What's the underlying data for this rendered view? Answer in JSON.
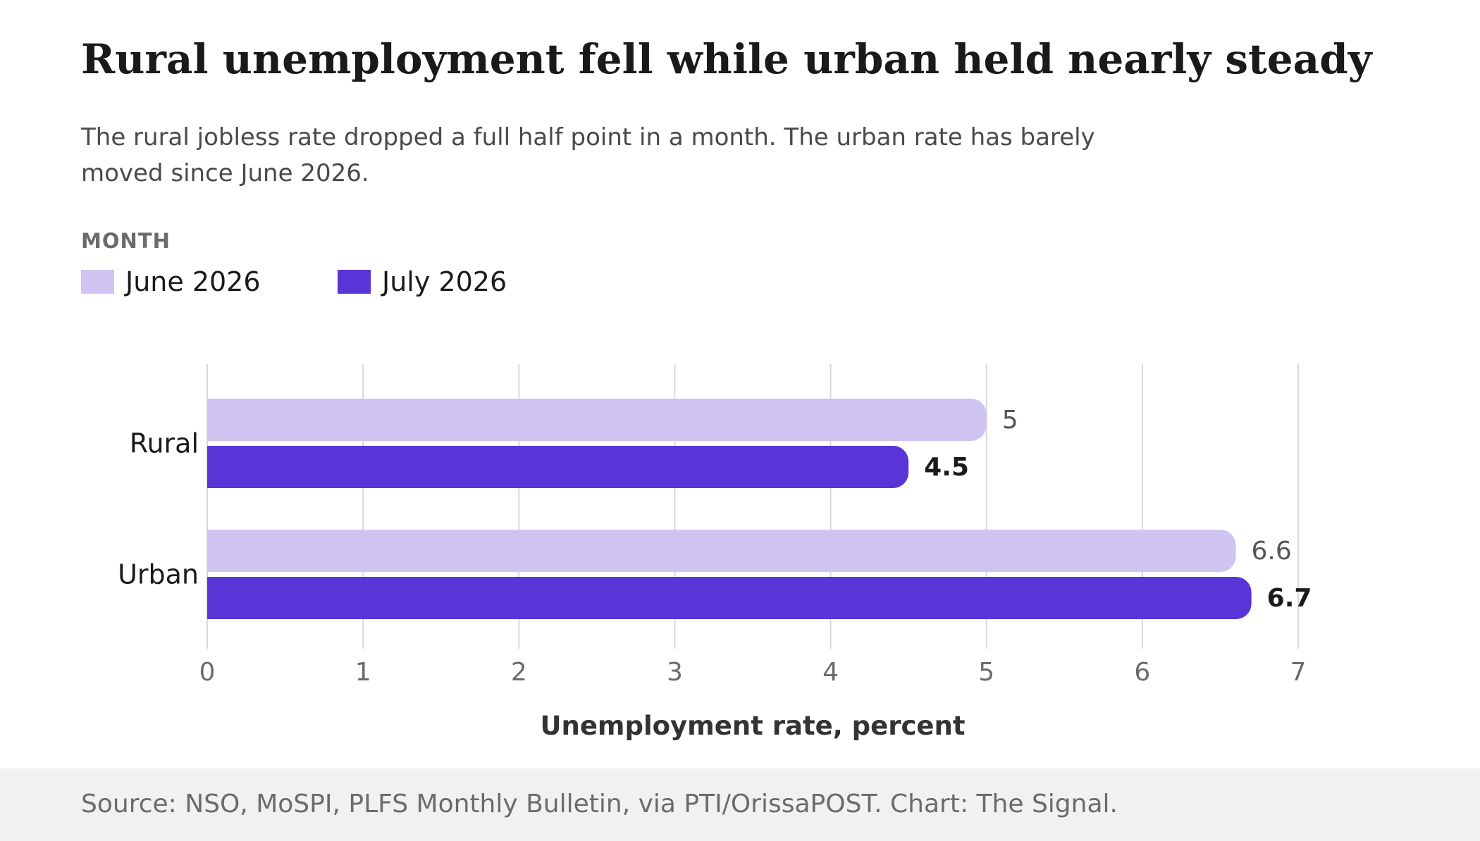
{
  "title": "Rural unemployment fell while urban held nearly steady",
  "subtitle": "The rural jobless rate dropped a full half point in a month. The urban rate has barely moved since June 2026.",
  "legend": {
    "title": "MONTH",
    "items": [
      {
        "label": "June 2026",
        "color": "#d0c4f2"
      },
      {
        "label": "July 2026",
        "color": "#5934d6"
      }
    ]
  },
  "source": "Source: NSO, MoSPI, PLFS Monthly Bulletin, via PTI/OrissaPOST. Chart: The Signal.",
  "chart_data": {
    "type": "bar",
    "orientation": "horizontal",
    "categories": [
      "Rural",
      "Urban"
    ],
    "series": [
      {
        "name": "June 2026",
        "values": [
          5,
          6.6
        ],
        "color": "#d0c4f2",
        "labels": [
          "5",
          "6.6"
        ]
      },
      {
        "name": "July 2026",
        "values": [
          4.5,
          6.7
        ],
        "color": "#5934d6",
        "labels": [
          "4.5",
          "6.7"
        ]
      }
    ],
    "xlabel": "Unemployment rate, percent",
    "xlim": [
      0,
      7
    ],
    "xticks": [
      "0",
      "1",
      "2",
      "3",
      "4",
      "5",
      "6",
      "7"
    ],
    "grid": true,
    "legend_position": "top-left"
  }
}
